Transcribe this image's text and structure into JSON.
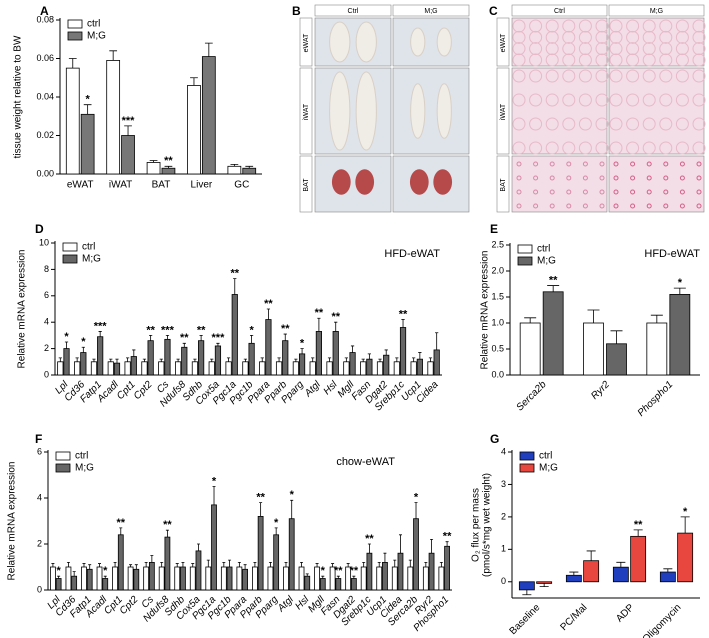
{
  "chart_data": [
    {
      "type": "bar",
      "panel": "A",
      "ylabel": "tissue weight relative to BW",
      "categories": [
        "eWAT",
        "iWAT",
        "BAT",
        "Liver",
        "GC"
      ],
      "xlabel_rotation": 0,
      "category_style": "normal",
      "series": [
        {
          "name": "ctrl",
          "color": "#ffffff",
          "values": [
            0.055,
            0.059,
            0.006,
            0.046,
            0.004
          ],
          "errors": [
            0.005,
            0.005,
            0.001,
            0.004,
            0.001
          ]
        },
        {
          "name": "M;G",
          "color": "#777777",
          "values": [
            0.031,
            0.02,
            0.003,
            0.061,
            0.003
          ],
          "errors": [
            0.005,
            0.005,
            0.001,
            0.007,
            0.001
          ]
        }
      ],
      "significance": [
        "*",
        "***",
        "**",
        null,
        null
      ],
      "ylim": [
        0,
        0.08
      ],
      "yticks": [
        {
          "value": 0,
          "label": "0.00"
        },
        0.02,
        0.04,
        0.06,
        0.08
      ],
      "legend": "upper left"
    },
    {
      "type": "bar",
      "panel": "D",
      "title": "HFD-eWAT",
      "ylabel": "Relative mRNA expression",
      "categories": [
        "Lpl",
        "Cd36",
        "Fatp1",
        "Acadl",
        "Cpt1",
        "Cpt2",
        "Cs",
        "Ndufs8",
        "Sdhb",
        "Cox5a",
        "Pgc1a",
        "Pgc1b",
        "Ppara",
        "Pparb",
        "Pparg",
        "Atgl",
        "Hsl",
        "Mgll",
        "Fasn",
        "Dgat2",
        "Srebp1c",
        "Ucp1",
        "Cidea"
      ],
      "xlabel_rotation": 45,
      "category_style": "italic",
      "series": [
        {
          "name": "ctrl",
          "color": "#ffffff",
          "values": [
            1,
            1,
            1,
            1,
            1,
            1,
            1,
            1,
            1,
            1,
            1,
            1,
            1,
            1,
            1,
            1,
            1,
            1,
            1,
            1,
            1,
            1,
            1
          ],
          "errors": [
            0.3,
            0.3,
            0.2,
            0.2,
            0.3,
            0.2,
            0.2,
            0.2,
            0.2,
            0.2,
            0.3,
            0.2,
            0.3,
            0.3,
            0.2,
            0.3,
            0.3,
            0.3,
            0.2,
            0.2,
            0.3,
            0.3,
            0.3
          ]
        },
        {
          "name": "M;G",
          "color": "#666666",
          "values": [
            2.0,
            1.7,
            2.9,
            0.9,
            1.4,
            2.6,
            2.7,
            2.1,
            2.6,
            2.2,
            6.1,
            2.4,
            4.2,
            2.6,
            1.6,
            3.3,
            3.3,
            1.7,
            1.2,
            1.5,
            3.6,
            1.2,
            1.9
          ],
          "errors": [
            0.5,
            0.4,
            0.4,
            0.3,
            0.5,
            0.4,
            0.3,
            0.3,
            0.4,
            0.2,
            1.2,
            0.6,
            0.8,
            0.5,
            0.4,
            1.0,
            0.7,
            0.5,
            0.4,
            0.4,
            0.6,
            0.5,
            1.3
          ]
        }
      ],
      "significance": [
        "*",
        "*",
        "***",
        null,
        null,
        "**",
        "***",
        "**",
        "**",
        "***",
        "**",
        "*",
        "**",
        "**",
        "*",
        "**",
        "**",
        null,
        null,
        null,
        "**",
        null,
        null
      ],
      "ylim": [
        0,
        10
      ],
      "yticks": [
        0,
        2,
        4,
        6,
        8,
        10
      ],
      "legend": "upper left"
    },
    {
      "type": "bar",
      "panel": "E",
      "title": "HFD-eWAT",
      "ylabel": "Relative mRNA expression",
      "categories": [
        "Serca2b",
        "Ryr2",
        "Phospho1"
      ],
      "xlabel_rotation": 45,
      "category_style": "italic",
      "series": [
        {
          "name": "ctrl",
          "color": "#ffffff",
          "values": [
            1.0,
            1.0,
            1.0
          ],
          "errors": [
            0.1,
            0.25,
            0.15
          ]
        },
        {
          "name": "M;G",
          "color": "#666666",
          "values": [
            1.6,
            0.6,
            1.55
          ],
          "errors": [
            0.12,
            0.25,
            0.12
          ]
        }
      ],
      "significance": [
        "**",
        null,
        "*"
      ],
      "ylim": [
        0,
        2.5
      ],
      "yticks": [
        {
          "value": 0,
          "label": "0.0"
        },
        0.5,
        {
          "value": 1,
          "label": "1.0"
        },
        1.5,
        {
          "value": 2,
          "label": "2.0"
        },
        2.5
      ],
      "legend": "upper left"
    },
    {
      "type": "bar",
      "panel": "F",
      "title": "chow-eWAT",
      "ylabel": "Relative mRNA expression",
      "categories": [
        "Lpl",
        "Cd36",
        "Fatp1",
        "Acadl",
        "Cpt1",
        "Cpt2",
        "Cs",
        "Ndufs8",
        "Sdhb",
        "Cox5a",
        "Pgc1a",
        "Pgc1b",
        "Ppara",
        "Pparb",
        "Pparg",
        "Atgl",
        "Hsl",
        "Mgll",
        "Fasn",
        "Dgat2",
        "Srebp1c",
        "Ucp1",
        "Cidea",
        "Serca2b",
        "Ryr2",
        "Phospho1"
      ],
      "xlabel_rotation": 45,
      "category_style": "italic",
      "series": [
        {
          "name": "ctrl",
          "color": "#ffffff",
          "values": [
            1,
            1,
            1,
            1,
            1,
            1,
            1,
            1,
            1,
            1,
            1,
            1,
            1,
            1,
            1,
            1,
            1,
            1,
            1,
            1,
            1,
            1,
            1,
            1,
            1,
            1
          ],
          "errors": [
            0.15,
            0.2,
            0.15,
            0.15,
            0.2,
            0.1,
            0.2,
            0.2,
            0.15,
            0.15,
            0.3,
            0.2,
            0.2,
            0.2,
            0.2,
            0.2,
            0.2,
            0.15,
            0.15,
            0.15,
            0.2,
            0.2,
            0.3,
            0.3,
            0.2,
            0.2
          ]
        },
        {
          "name": "M;G",
          "color": "#666666",
          "values": [
            0.5,
            0.6,
            0.9,
            0.5,
            2.4,
            0.9,
            1.2,
            2.3,
            1.0,
            1.7,
            3.7,
            1.0,
            0.9,
            3.2,
            2.4,
            3.1,
            0.6,
            0.5,
            0.5,
            0.5,
            1.6,
            1.2,
            1.6,
            3.1,
            1.6,
            1.9
          ],
          "errors": [
            0.1,
            0.2,
            0.2,
            0.1,
            0.3,
            0.2,
            0.3,
            0.3,
            0.2,
            0.3,
            0.8,
            0.3,
            0.2,
            0.6,
            0.3,
            0.8,
            0.1,
            0.1,
            0.1,
            0.1,
            0.4,
            0.4,
            0.8,
            0.7,
            0.6,
            0.2
          ]
        }
      ],
      "significance": [
        "*",
        null,
        null,
        "*",
        "**",
        null,
        null,
        "**",
        null,
        null,
        "*",
        null,
        null,
        "**",
        "*",
        "*",
        null,
        "*",
        "**",
        "**",
        "**",
        null,
        null,
        "*",
        null,
        "**"
      ],
      "ylim": [
        0,
        6
      ],
      "yticks": [
        0,
        2,
        4,
        6
      ],
      "legend": "upper left"
    },
    {
      "type": "bar",
      "panel": "G",
      "ylabel": [
        "O₂ flux per mass",
        "(pmol/s*mg wet weight)"
      ],
      "categories": [
        "Baseline",
        "PC/Mal",
        "ADP",
        "Oligomycin"
      ],
      "xlabel_rotation": 45,
      "category_style": "normal",
      "series": [
        {
          "name": "ctrl",
          "color": "#1f3fbf",
          "values": [
            -0.25,
            0.2,
            0.45,
            0.3
          ],
          "errors": [
            0.15,
            0.1,
            0.15,
            0.1
          ]
        },
        {
          "name": "M;G",
          "color": "#e8473f",
          "values": [
            -0.05,
            0.65,
            1.4,
            1.5
          ],
          "errors": [
            0.1,
            0.3,
            0.2,
            0.5
          ]
        }
      ],
      "significance": [
        null,
        null,
        "**",
        "*"
      ],
      "ylim": [
        -0.5,
        4
      ],
      "yticks": [
        0,
        1,
        2,
        3,
        4
      ],
      "legend": "upper left"
    }
  ],
  "photo_panels": [
    {
      "panel": "B",
      "columns": [
        "Ctrl",
        "M;G"
      ],
      "rows": [
        "eWAT",
        "iWAT",
        "BAT"
      ]
    },
    {
      "panel": "C",
      "columns": [
        "Ctrl",
        "M;G"
      ],
      "rows": [
        "eWAT",
        "iWAT",
        "BAT"
      ]
    }
  ]
}
